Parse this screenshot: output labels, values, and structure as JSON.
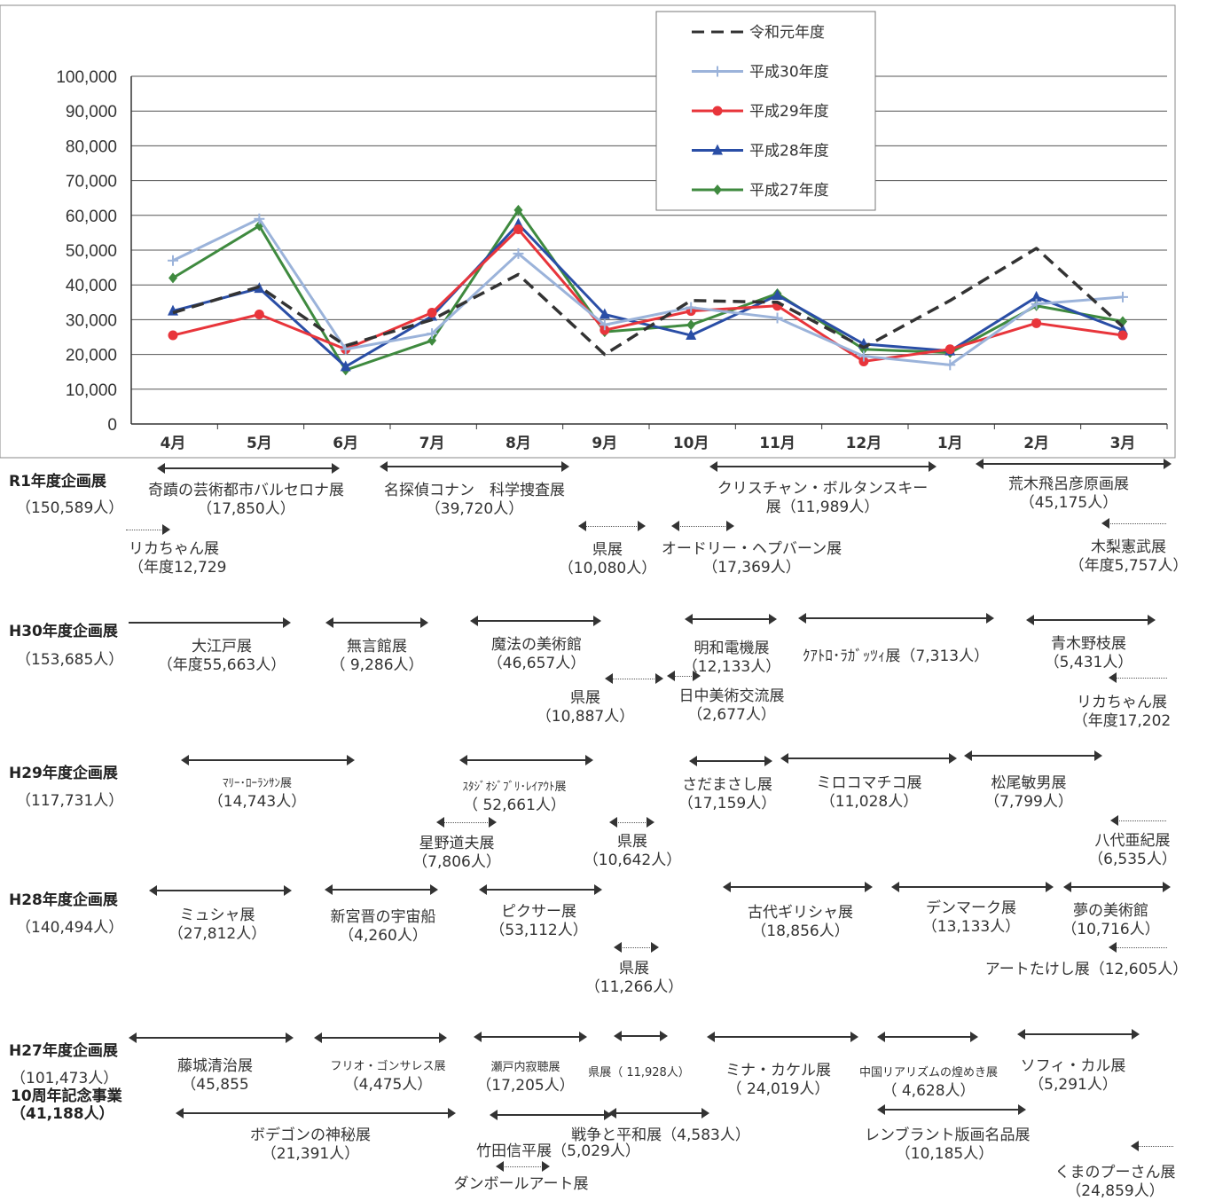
{
  "chart_data": {
    "type": "line",
    "categories": [
      "4月",
      "5月",
      "6月",
      "7月",
      "8月",
      "9月",
      "10月",
      "11月",
      "12月",
      "1月",
      "2月",
      "3月"
    ],
    "ylim": [
      0,
      100000
    ],
    "yticks": [
      "0",
      "10,000",
      "20,000",
      "30,000",
      "40,000",
      "50,000",
      "60,000",
      "70,000",
      "80,000",
      "90,000",
      "100,000"
    ],
    "grid": true,
    "legend_position": "top-right",
    "series": [
      {
        "name": "令和元年度",
        "color": "#333333",
        "style": "dashed",
        "marker": "none",
        "values": [
          32000,
          39500,
          22500,
          30000,
          43000,
          20000,
          35500,
          35000,
          22000,
          35500,
          50500,
          28000
        ]
      },
      {
        "name": "平成30年度",
        "color": "#9bb3da",
        "style": "solid",
        "marker": "plus",
        "values": [
          47000,
          59000,
          21500,
          26000,
          49000,
          28500,
          33500,
          30500,
          19500,
          17000,
          34500,
          36500
        ]
      },
      {
        "name": "平成29年度",
        "color": "#e8353b",
        "style": "solid",
        "marker": "circle",
        "values": [
          25500,
          31500,
          21500,
          32000,
          56000,
          27000,
          32500,
          34000,
          18000,
          21500,
          29000,
          25500
        ]
      },
      {
        "name": "平成28年度",
        "color": "#2a4ea6",
        "style": "solid",
        "marker": "triangle",
        "values": [
          32500,
          39000,
          16500,
          31000,
          57500,
          31500,
          25500,
          37000,
          23000,
          21000,
          36500,
          27000
        ]
      },
      {
        "name": "平成27年度",
        "color": "#3f8a3f",
        "style": "solid",
        "marker": "diamond",
        "values": [
          42000,
          57000,
          15500,
          24000,
          61500,
          26500,
          28500,
          37500,
          21500,
          20500,
          34000,
          29500
        ]
      }
    ]
  },
  "rows": [
    {
      "header": "R1年度企画展",
      "total": "（150,589人）",
      "extra": "",
      "labels": [
        {
          "name": "奇蹟の芸術都市バルセロナ展",
          "num": "（17,850人）"
        },
        {
          "name": "名探偵コナン　科学捜査展",
          "num": "（39,720人）"
        },
        {
          "name": "クリスチャン・ボルタンスキー",
          "num": "展（11,989人）"
        },
        {
          "name": "荒木飛呂彦原画展",
          "num": "（45,175人）"
        },
        {
          "name": "リカちゃん展",
          "num": "（年度12,729"
        },
        {
          "name": "県展",
          "num": "（10,080人）"
        },
        {
          "name": "オードリー・ヘプバーン展",
          "num": "（17,369人）"
        },
        {
          "name": "木梨憲武展",
          "num": "（年度5,757人）"
        }
      ]
    },
    {
      "header": "H30年度企画展",
      "total": "（153,685人）",
      "extra": "",
      "labels": [
        {
          "name": "大江戸展",
          "num": "（年度55,663人）"
        },
        {
          "name": "無言館展",
          "num": "（ 9,286人）"
        },
        {
          "name": "魔法の美術館",
          "num": "（46,657人）"
        },
        {
          "name": "明和電機展",
          "num": "（12,133人）"
        },
        {
          "name": "ｸｱﾄﾛ･ﾗｶﾞｯﾂｨ展（7,313人）",
          "num": ""
        },
        {
          "name": "青木野枝展",
          "num": "（5,431人）"
        },
        {
          "name": "県展",
          "num": "（10,887人）"
        },
        {
          "name": "日中美術交流展",
          "num": "（2,677人）"
        },
        {
          "name": "リカちゃん展",
          "num": "（年度17,202"
        }
      ]
    },
    {
      "header": "H29年度企画展",
      "total": "（117,731人）",
      "extra": "",
      "labels": [
        {
          "name": "ﾏﾘｰ･ﾛｰﾗﾝｻﾝ展",
          "num": "（14,743人）"
        },
        {
          "name": "ｽﾀｼﾞｵｼﾞﾌﾞﾘ･ﾚｲｱｳﾄ展",
          "num": "（ 52,661人）"
        },
        {
          "name": "さだまさし展",
          "num": "（17,159人）"
        },
        {
          "name": "ミロコマチコ展",
          "num": "（11,028人）"
        },
        {
          "name": "松尾敏男展",
          "num": "（7,799人）"
        },
        {
          "name": "星野道夫展",
          "num": "（7,806人）"
        },
        {
          "name": "県展",
          "num": "（10,642人）"
        },
        {
          "name": "八代亜紀展",
          "num": "（6,535人）"
        }
      ]
    },
    {
      "header": "H28年度企画展",
      "total": "（140,494人）",
      "extra": "",
      "labels": [
        {
          "name": "ミュシャ展",
          "num": "（27,812人）"
        },
        {
          "name": "新宮晋の宇宙船",
          "num": "（4,260人）"
        },
        {
          "name": "ピクサー展",
          "num": "（53,112人）"
        },
        {
          "name": "古代ギリシャ展",
          "num": "（18,856人）"
        },
        {
          "name": "デンマーク展",
          "num": "（13,133人）"
        },
        {
          "name": "夢の美術館",
          "num": "（10,716人）"
        },
        {
          "name": "県展",
          "num": "（11,266人）"
        },
        {
          "name": "アートたけし展（12,605人）",
          "num": ""
        }
      ]
    },
    {
      "header": "H27年度企画展",
      "total": "（101,473人）",
      "extra": "10周年記念事業（41,188人）",
      "labels": [
        {
          "name": "藤城清治展",
          "num": "（45,855"
        },
        {
          "name": "フリオ・ゴンサレス展",
          "num": "（4,475人）"
        },
        {
          "name": "瀬戸内寂聴展",
          "num": "（17,205人）"
        },
        {
          "name": "県展（ 11,928人）",
          "num": ""
        },
        {
          "name": "ミナ・カケル展",
          "num": "（ 24,019人）"
        },
        {
          "name": "中国リアリズムの煌めき展",
          "num": "（ 4,628人）"
        },
        {
          "name": "ソフィ・カル展",
          "num": "（5,291人）"
        },
        {
          "name": "ボデゴンの神秘展",
          "num": "（21,391人）"
        },
        {
          "name": "戦争と平和展（4,583人）",
          "num": ""
        },
        {
          "name": "竹田信平展（5,029人）",
          "num": ""
        },
        {
          "name": "ダンボールアート展",
          "num": ""
        },
        {
          "name": "レンブラント版画名品展",
          "num": "（10,185人）"
        },
        {
          "name": "くまのプーさん展",
          "num": "（24,859人）"
        }
      ]
    }
  ]
}
